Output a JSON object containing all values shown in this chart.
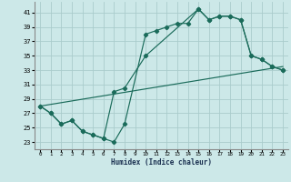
{
  "xlabel": "Humidex (Indice chaleur)",
  "background_color": "#cce8e8",
  "grid_color": "#aacccc",
  "line_color": "#1a6b5a",
  "xlim": [
    -0.5,
    23.5
  ],
  "ylim": [
    22,
    42.5
  ],
  "yticks": [
    23,
    25,
    27,
    29,
    31,
    33,
    35,
    37,
    39,
    41
  ],
  "xticks": [
    0,
    1,
    2,
    3,
    4,
    5,
    6,
    7,
    8,
    9,
    10,
    11,
    12,
    13,
    14,
    15,
    16,
    17,
    18,
    19,
    20,
    21,
    22,
    23
  ],
  "line1_x": [
    0,
    1,
    2,
    3,
    4,
    5,
    6,
    7,
    8,
    10,
    11,
    12,
    13,
    14,
    15,
    16,
    17,
    18,
    19,
    20,
    21,
    22,
    23
  ],
  "line1_y": [
    28,
    27,
    25.5,
    26,
    24.5,
    24,
    23.5,
    23,
    25.5,
    38,
    38.5,
    39,
    39.5,
    39.5,
    41.5,
    40,
    40.5,
    40.5,
    40,
    35,
    34.5,
    33.5,
    33
  ],
  "line2_x": [
    0,
    1,
    2,
    3,
    4,
    5,
    6,
    7,
    8,
    10,
    15,
    16,
    17,
    18,
    19,
    20,
    21,
    22,
    23
  ],
  "line2_y": [
    28,
    27,
    25.5,
    26,
    24.5,
    24,
    23.5,
    30,
    30.5,
    35,
    41.5,
    40,
    40.5,
    40.5,
    40,
    35,
    34.5,
    33.5,
    33
  ],
  "line3_x": [
    0,
    23
  ],
  "line3_y": [
    28,
    33.5
  ]
}
